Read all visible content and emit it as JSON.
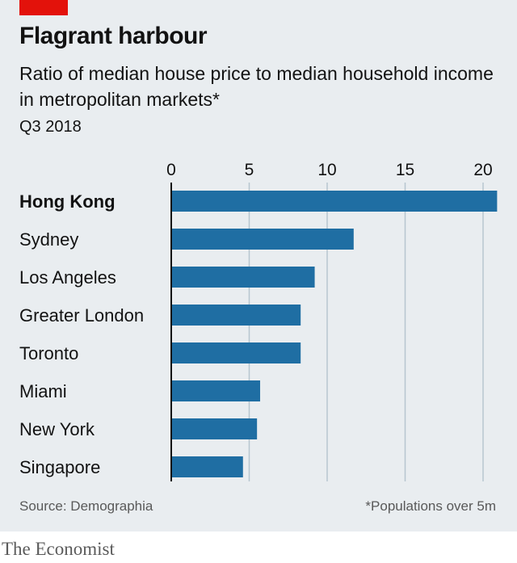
{
  "header": {
    "title": "Flagrant harbour",
    "subtitle": "Ratio of median house price to median household income in metropolitan markets*",
    "period": "Q3 2018"
  },
  "footer": {
    "source": "Source: Demographia",
    "footnote": "*Populations over 5m",
    "brand": "The Economist"
  },
  "colors": {
    "bar": "#1f6ea3",
    "gridline": "#b7c6cf",
    "axis": "#121212",
    "background": "#e9edf0",
    "accent": "#e3120b"
  },
  "chart_data": {
    "type": "bar",
    "orientation": "horizontal",
    "categories": [
      "Hong Kong",
      "Sydney",
      "Los Angeles",
      "Greater London",
      "Toronto",
      "Miami",
      "New York",
      "Singapore"
    ],
    "values": [
      20.9,
      11.7,
      9.2,
      8.3,
      8.3,
      5.7,
      5.5,
      4.6
    ],
    "highlight_category": "Hong Kong",
    "xlim": [
      0,
      21
    ],
    "xticks": [
      0,
      5,
      10,
      15,
      20
    ],
    "tick_labels": [
      "0",
      "5",
      "10",
      "15",
      "20"
    ],
    "grid": true,
    "axis_position": "top"
  }
}
